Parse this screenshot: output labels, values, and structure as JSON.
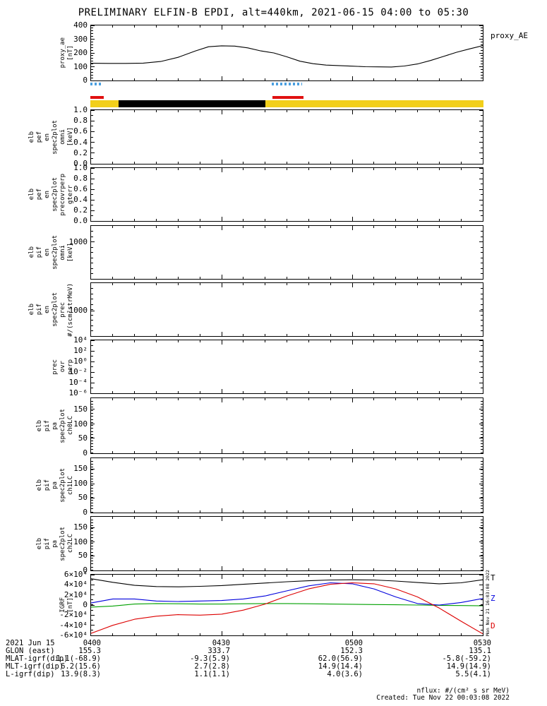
{
  "title": "PRELIMINARY ELFIN-B EPDI, alt=440km, 2021-06-15 04:00 to 05:30",
  "colors": {
    "foreground": "#000000",
    "fast_zone": "#4a9fe0",
    "science_zone": "#e01010",
    "sunlight": "#f2cf1a",
    "eclipse": "#000000",
    "igrf_T": "#000000",
    "igrf_Z": "#0000dd",
    "igrf_E": "#00a000",
    "igrf_D": "#dd0000"
  },
  "time_axis": {
    "date": "2021 Jun 15",
    "tick_labels": [
      "0400",
      "0430",
      "0500",
      "0530"
    ],
    "tick_minutes": [
      0,
      30,
      60,
      90
    ],
    "span_minutes": 90
  },
  "bars": {
    "fast_zone_segments": [
      {
        "start": 0,
        "end": 2.6
      },
      {
        "start": 41.5,
        "end": 48.5
      }
    ],
    "science_zone_segments": [
      {
        "start": 0,
        "end": 3
      },
      {
        "start": 41.7,
        "end": 48.8
      }
    ],
    "sunlight_segments": [
      {
        "start": 0,
        "end": 90
      }
    ],
    "eclipse_segments": [
      {
        "start": 6.5,
        "end": 40
      }
    ]
  },
  "panels": [
    {
      "id": "proxy_ae",
      "label_words": [
        "proxy_ae",
        "[nT]"
      ],
      "minor_y_step": 0.05,
      "yticks": [
        {
          "t": "400",
          "f": 0
        },
        {
          "t": "300",
          "f": 0.25
        },
        {
          "t": "200",
          "f": 0.5
        },
        {
          "t": "100",
          "f": 0.75
        },
        {
          "t": "0",
          "f": 1
        }
      ],
      "right_labels": [
        {
          "t": "proxy_AE",
          "color": "#000000",
          "f": 0.19
        }
      ]
    },
    {
      "id": "elb_pef_en_spec2plot_omni",
      "label_words": [
        "elb",
        "pef",
        "en",
        "spec2plot",
        "omni",
        "[keV]"
      ],
      "minor_y_step": 0.1,
      "yticks": [
        {
          "t": "1.0",
          "f": 0
        },
        {
          "t": "0.8",
          "f": 0.2
        },
        {
          "t": "0.6",
          "f": 0.4
        },
        {
          "t": "0.4",
          "f": 0.6
        },
        {
          "t": "0.2",
          "f": 0.8
        },
        {
          "t": "0.0",
          "f": 1
        }
      ]
    },
    {
      "id": "elb_pef_en_spec2plot_precovrperp_gterr",
      "label_words": [
        "elb",
        "pef",
        "en",
        "spec2plot",
        "precovrperp",
        "gterr"
      ],
      "minor_y_step": 0.1,
      "yticks": [
        {
          "t": "1.0",
          "f": 0
        },
        {
          "t": "0.8",
          "f": 0.2
        },
        {
          "t": "0.6",
          "f": 0.4
        },
        {
          "t": "0.4",
          "f": 0.6
        },
        {
          "t": "0.2",
          "f": 0.8
        },
        {
          "t": "0.0",
          "f": 1
        }
      ]
    },
    {
      "id": "elb_pif_en_spec2plot_omni",
      "label_words": [
        "elb",
        "pif",
        "en",
        "spec2plot",
        "omni",
        "[keV]"
      ],
      "minor_y_step": 0.1,
      "yticks": [
        {
          "t": "1000",
          "f": 0.3
        }
      ]
    },
    {
      "id": "elb_pif_en_spec2plot_prec",
      "label_words": [
        "elb",
        "pif",
        "en",
        "spec2plot",
        "prec",
        "#/(scm²strMeV)"
      ],
      "minor_y_step": 0.1,
      "yticks": [
        {
          "t": "1000",
          "f": 0.52
        }
      ]
    },
    {
      "id": "prec_ovr_perp",
      "label_words": [
        "prec",
        "ovr",
        "perp"
      ],
      "minor_y_step": 0.1,
      "yticks": [
        {
          "t": "10⁴",
          "f": 0
        },
        {
          "t": "10²",
          "f": 0.2
        },
        {
          "t": "10⁰",
          "f": 0.4
        },
        {
          "t": "10⁻²",
          "f": 0.6
        },
        {
          "t": "10⁻⁴",
          "f": 0.8
        },
        {
          "t": "10⁻⁶",
          "f": 1
        }
      ]
    },
    {
      "id": "elb_pif_pa_spec2plot_ch0LC",
      "label_words": [
        "elb",
        "pif",
        "pa",
        "spec2plot",
        "ch0LC"
      ],
      "minor_y_step": 0.055,
      "yticks": [
        {
          "t": "150",
          "f": 0.2
        },
        {
          "t": "100",
          "f": 0.47
        },
        {
          "t": "50",
          "f": 0.73
        },
        {
          "t": "0",
          "f": 1
        }
      ]
    },
    {
      "id": "elb_pif_pa_spec2plot_ch1LC",
      "label_words": [
        "elb",
        "pif",
        "pa",
        "spec2plot",
        "ch1LC"
      ],
      "minor_y_step": 0.055,
      "yticks": [
        {
          "t": "150",
          "f": 0.2
        },
        {
          "t": "100",
          "f": 0.47
        },
        {
          "t": "50",
          "f": 0.73
        },
        {
          "t": "0",
          "f": 1
        }
      ]
    },
    {
      "id": "elb_pif_pa_spec2plot_ch2LC",
      "label_words": [
        "elb",
        "pif",
        "pa",
        "spec2plot",
        "ch2LC"
      ],
      "minor_y_step": 0.055,
      "yticks": [
        {
          "t": "150",
          "f": 0.2
        },
        {
          "t": "100",
          "f": 0.47
        },
        {
          "t": "50",
          "f": 0.73
        },
        {
          "t": "0",
          "f": 1
        }
      ]
    },
    {
      "id": "igrf",
      "label_words": [
        "IGRF",
        "[nT]"
      ],
      "minor_y_step": 0.0833,
      "yticks": [
        {
          "t": "6×10⁴",
          "f": 0
        },
        {
          "t": "4×10⁴",
          "f": 0.167
        },
        {
          "t": "2×10⁴",
          "f": 0.333
        },
        {
          "t": "0",
          "f": 0.5
        },
        {
          "t": "-2×10⁴",
          "f": 0.667
        },
        {
          "t": "-4×10⁴",
          "f": 0.833
        },
        {
          "t": "-6×10⁴",
          "f": 1
        }
      ],
      "right_labels": [
        {
          "t": "T",
          "color": "#000000",
          "f": 0.06
        },
        {
          "t": "Z",
          "color": "#0000dd",
          "f": 0.39
        },
        {
          "t": "D",
          "color": "#dd0000",
          "f": 0.85
        }
      ]
    }
  ],
  "chart_data": [
    {
      "id": "proxy_ae",
      "type": "line",
      "title": "proxy_AE",
      "ylabel": "proxy_ae [nT]",
      "xlim": [
        0,
        90
      ],
      "ylim": [
        0,
        400
      ],
      "xtick_labels": [
        "0400",
        "0430",
        "0500",
        "0530"
      ],
      "xtick_minutes": [
        0,
        30,
        60,
        90
      ],
      "x": [
        0,
        4,
        8,
        12,
        16,
        20,
        24,
        27,
        30,
        33,
        36,
        39,
        42,
        45,
        48,
        51,
        54,
        57,
        60,
        63,
        66,
        69,
        72,
        75,
        78,
        81,
        84,
        87,
        90
      ],
      "series": [
        {
          "name": "proxy_AE",
          "color": "#000000",
          "values": [
            125,
            124,
            124,
            126,
            138,
            168,
            215,
            245,
            252,
            250,
            237,
            215,
            200,
            172,
            140,
            122,
            112,
            108,
            104,
            100,
            99,
            98,
            105,
            120,
            145,
            175,
            205,
            230,
            253
          ]
        }
      ]
    },
    {
      "id": "igrf",
      "type": "line",
      "ylabel": "IGRF [nT]",
      "xlim": [
        0,
        90
      ],
      "ylim": [
        -60000,
        60000
      ],
      "xtick_labels": [
        "0400",
        "0430",
        "0500",
        "0530"
      ],
      "xtick_minutes": [
        0,
        30,
        60,
        90
      ],
      "x": [
        0,
        5,
        10,
        15,
        20,
        25,
        30,
        35,
        40,
        45,
        50,
        55,
        60,
        65,
        70,
        75,
        80,
        85,
        90
      ],
      "series": [
        {
          "name": "T",
          "color": "#000000",
          "values": [
            52000,
            45000,
            39000,
            36500,
            36000,
            37000,
            38500,
            41000,
            43500,
            46000,
            48000,
            49500,
            50000,
            49500,
            47500,
            44500,
            42000,
            44000,
            50000
          ]
        },
        {
          "name": "Z",
          "color": "#0000dd",
          "values": [
            4000,
            12000,
            12000,
            8000,
            7000,
            8000,
            9000,
            12000,
            18000,
            28000,
            38000,
            44000,
            42000,
            32000,
            16000,
            3000,
            0,
            5000,
            13000
          ]
        },
        {
          "name": "E",
          "color": "#00a000",
          "values": [
            -4000,
            -2000,
            2000,
            3000,
            2500,
            2000,
            2000,
            2500,
            3000,
            3000,
            2500,
            2000,
            1500,
            1000,
            500,
            0,
            -500,
            -1000,
            -1500
          ]
        },
        {
          "name": "D",
          "color": "#dd0000",
          "values": [
            -56000,
            -40000,
            -28000,
            -22000,
            -19000,
            -20000,
            -18000,
            -10000,
            2000,
            18000,
            32000,
            41000,
            44000,
            42000,
            32000,
            16000,
            -6000,
            -32000,
            -57000
          ]
        }
      ]
    }
  ],
  "ephemeris": {
    "rows": [
      {
        "label": "2021 Jun 15",
        "values": [
          "0400",
          "0430",
          "0500",
          "0530"
        ]
      },
      {
        "label": "GLON (east)",
        "values": [
          "155.3",
          "333.7",
          "152.3",
          "135.1"
        ]
      },
      {
        "label": "MLAT-igrf(dip)",
        "values": [
          "1.1(-68.9)",
          "-9.3(5.9)",
          "62.0(56.9)",
          "-5.8(-59.2)"
        ]
      },
      {
        "label": "MLT-igrf(dip)",
        "values": [
          "6.2(15.6)",
          "2.7(2.8)",
          "14.9(14.4)",
          "14.9(14.9)"
        ]
      },
      {
        "label": "L-igrf(dip)",
        "values": [
          "13.9(8.3)",
          "1.1(1.1)",
          "4.0(3.6)",
          "5.5(4.1)"
        ]
      }
    ]
  },
  "watermark": "Mon Nov 21 16:03:08 2022",
  "footer": {
    "nflux": "nflux: #/(cm² s sr MeV)",
    "created": "Created: Tue Nov 22 00:03:08 2022"
  }
}
